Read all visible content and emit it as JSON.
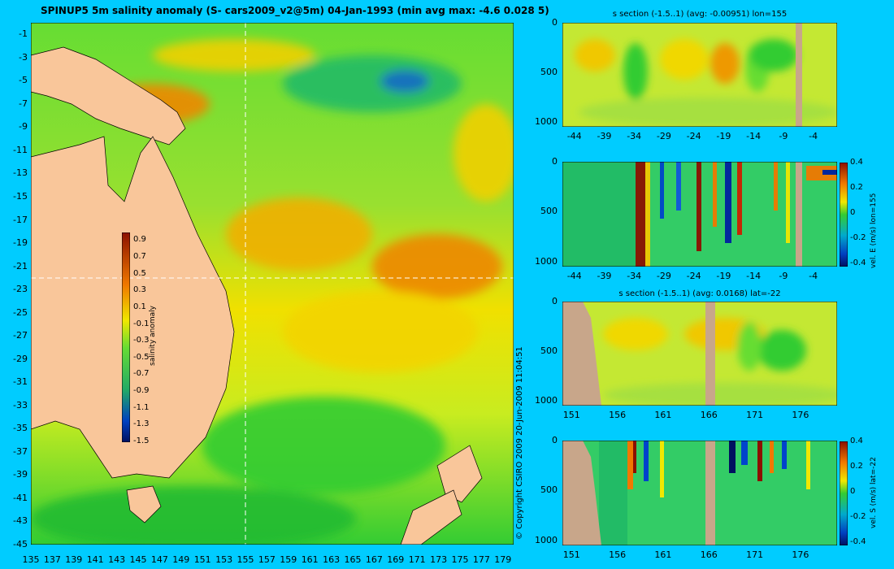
{
  "chart_data": [
    {
      "type": "heatmap",
      "title": "SPINUP5 5m salinity anomaly  (S- cars2009_v2@5m) 04-Jan-1993 (min avg max: -4.6 0.028 5)",
      "x_ticks": [
        "135",
        "137",
        "139",
        "141",
        "143",
        "145",
        "147",
        "149",
        "151",
        "153",
        "155",
        "157",
        "159",
        "161",
        "163",
        "165",
        "167",
        "169",
        "171",
        "173",
        "175",
        "177",
        "179"
      ],
      "y_ticks": [
        "-1",
        "-3",
        "-5",
        "-7",
        "-9",
        "-11",
        "-13",
        "-15",
        "-17",
        "-19",
        "-21",
        "-23",
        "-25",
        "-27",
        "-29",
        "-31",
        "-33",
        "-35",
        "-37",
        "-39",
        "-41",
        "-43",
        "-45"
      ],
      "xlim": [
        135,
        180
      ],
      "ylim": [
        -45,
        0
      ],
      "crosshair": {
        "lon": 155,
        "lat": -22
      },
      "colorbar": {
        "label": "salinity anomaly",
        "ticks": [
          "0.9",
          "0.7",
          "0.5",
          "0.3",
          "0.1",
          "-0.1",
          "-0.3",
          "-0.5",
          "-0.7",
          "-0.9",
          "-1.1",
          "-1.3",
          "-1.5"
        ],
        "range": [
          -1.5,
          1.0
        ]
      }
    },
    {
      "type": "heatmap",
      "title": "s section (-1.5..1) (avg: -0.00951) lon=155",
      "x_ticks": [
        "-44",
        "-39",
        "-34",
        "-29",
        "-24",
        "-19",
        "-14",
        "-9",
        "-4"
      ],
      "y_ticks": [
        "0",
        "500",
        "1000"
      ],
      "xlim": [
        -46,
        0
      ],
      "ylim": [
        1050,
        0
      ]
    },
    {
      "type": "heatmap",
      "title": "",
      "x_ticks": [
        "-44",
        "-39",
        "-34",
        "-29",
        "-24",
        "-19",
        "-14",
        "-9",
        "-4"
      ],
      "y_ticks": [
        "0",
        "500",
        "1000"
      ],
      "xlim": [
        -46,
        0
      ],
      "ylim": [
        1050,
        0
      ],
      "colorbar": {
        "label": "vel. E (m/s) lon=155",
        "ticks": [
          "0.4",
          "0.2",
          "0",
          "-0.2",
          "-0.4"
        ],
        "range": [
          -0.4,
          0.4
        ]
      }
    },
    {
      "type": "heatmap",
      "title": "s section (-1.5..1) (avg: 0.0168) lat=-22",
      "x_ticks": [
        "151",
        "156",
        "161",
        "166",
        "171",
        "176"
      ],
      "y_ticks": [
        "0",
        "500",
        "1000"
      ],
      "xlim": [
        150,
        180
      ],
      "ylim": [
        1050,
        0
      ]
    },
    {
      "type": "heatmap",
      "title": "",
      "x_ticks": [
        "151",
        "156",
        "161",
        "166",
        "171",
        "176"
      ],
      "y_ticks": [
        "0",
        "500",
        "1000"
      ],
      "xlim": [
        150,
        180
      ],
      "ylim": [
        1050,
        0
      ],
      "colorbar": {
        "label": "vel. S (m/s) lat=-22",
        "ticks": [
          "0.4",
          "0.2",
          "0",
          "-0.2",
          "-0.4"
        ],
        "range": [
          -0.4,
          0.4
        ]
      }
    }
  ],
  "copyright": "© Copyright CSIRO 2009   20-Jun-2009 11:04:51",
  "colors": {
    "background": "#00ccff",
    "land": "#f9c69a",
    "seafloor": "#c8a68a",
    "field_green": "#33cc33",
    "field_yellow": "#f0e800",
    "field_orange": "#f07800",
    "field_red": "#8c1000",
    "field_blue": "#0020a0"
  }
}
